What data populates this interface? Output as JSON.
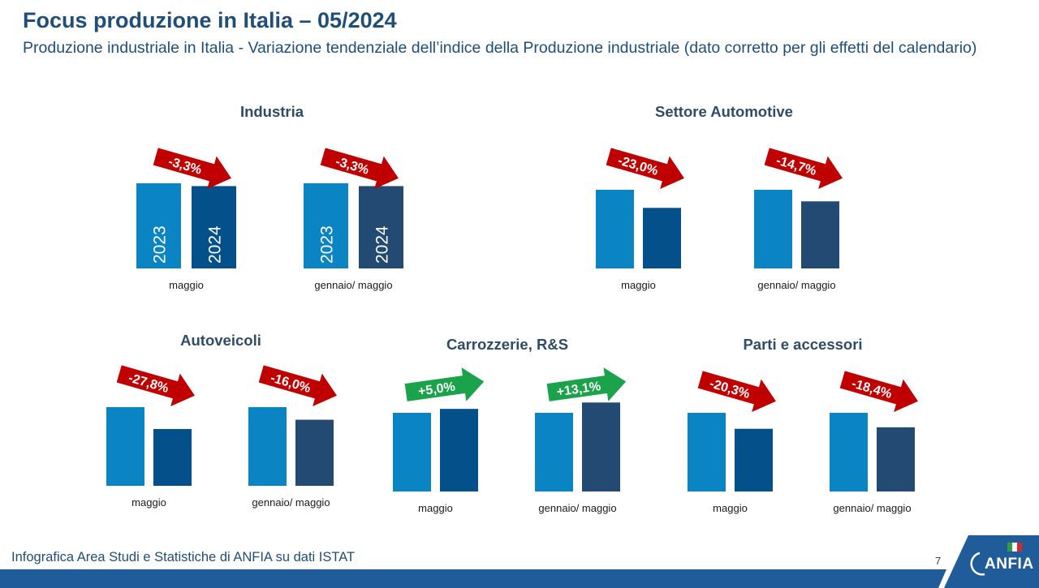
{
  "header": {
    "title": "Focus produzione in Italia – 05/2024",
    "subtitle": "Produzione industriale in Italia - Variazione tendenziale dell’indice della Produzione industriale (dato corretto per gli effetti del calendario)"
  },
  "groups": [
    {
      "title": "Industria"
    },
    {
      "title": "Settore Automotive"
    },
    {
      "title": "Autoveicoli"
    },
    {
      "title": "Carrozzerie, R&S"
    },
    {
      "title": "Parti e accessori"
    }
  ],
  "colors": {
    "bar_2023": "#0b84c4",
    "bar_2024_maggio": "#03508a",
    "bar_2024_ytd": "#234a72",
    "arrow_negative": "#c00000",
    "arrow_positive": "#1aa34a",
    "footer_bar": "#1f5c99"
  },
  "chart_data": [
    {
      "type": "bar",
      "group": "Industria",
      "period": "maggio",
      "categories": [
        "2023",
        "2024"
      ],
      "values": [
        100,
        96.7
      ],
      "change_label": "-3,3%",
      "direction": "down",
      "show_year_labels": true
    },
    {
      "type": "bar",
      "group": "Industria",
      "period": "gennaio/ maggio",
      "categories": [
        "2023",
        "2024"
      ],
      "values": [
        100,
        96.7
      ],
      "change_label": "-3,3%",
      "direction": "down",
      "show_year_labels": true
    },
    {
      "type": "bar",
      "group": "Settore Automotive",
      "period": "maggio",
      "categories": [
        "2023",
        "2024"
      ],
      "values": [
        100,
        77.0
      ],
      "change_label": "-23,0%",
      "direction": "down",
      "show_year_labels": false
    },
    {
      "type": "bar",
      "group": "Settore Automotive",
      "period": "gennaio/ maggio",
      "categories": [
        "2023",
        "2024"
      ],
      "values": [
        100,
        85.3
      ],
      "change_label": "-14,7%",
      "direction": "down",
      "show_year_labels": false
    },
    {
      "type": "bar",
      "group": "Autoveicoli",
      "period": "maggio",
      "categories": [
        "2023",
        "2024"
      ],
      "values": [
        100,
        72.2
      ],
      "change_label": "-27,8%",
      "direction": "down",
      "show_year_labels": false
    },
    {
      "type": "bar",
      "group": "Autoveicoli",
      "period": "gennaio/ maggio",
      "categories": [
        "2023",
        "2024"
      ],
      "values": [
        100,
        84.0
      ],
      "change_label": "-16,0%",
      "direction": "down",
      "show_year_labels": false
    },
    {
      "type": "bar",
      "group": "Carrozzerie, R&S",
      "period": "maggio",
      "categories": [
        "2023",
        "2024"
      ],
      "values": [
        100,
        105.0
      ],
      "change_label": "+5,0%",
      "direction": "up",
      "show_year_labels": false
    },
    {
      "type": "bar",
      "group": "Carrozzerie, R&S",
      "period": "gennaio/ maggio",
      "categories": [
        "2023",
        "2024"
      ],
      "values": [
        100,
        113.1
      ],
      "change_label": "+13,1%",
      "direction": "up",
      "show_year_labels": false
    },
    {
      "type": "bar",
      "group": "Parti e accessori",
      "period": "maggio",
      "categories": [
        "2023",
        "2024"
      ],
      "values": [
        100,
        79.7
      ],
      "change_label": "-20,3%",
      "direction": "down",
      "show_year_labels": false
    },
    {
      "type": "bar",
      "group": "Parti e accessori",
      "period": "gennaio/ maggio",
      "categories": [
        "2023",
        "2024"
      ],
      "values": [
        100,
        81.6
      ],
      "change_label": "-18,4%",
      "direction": "down",
      "show_year_labels": false
    }
  ],
  "footer": {
    "source": "Infografica Area Studi e Statistiche di ANFIA su dati ISTAT",
    "page_number": "7",
    "logo_text": "ANFIA"
  }
}
